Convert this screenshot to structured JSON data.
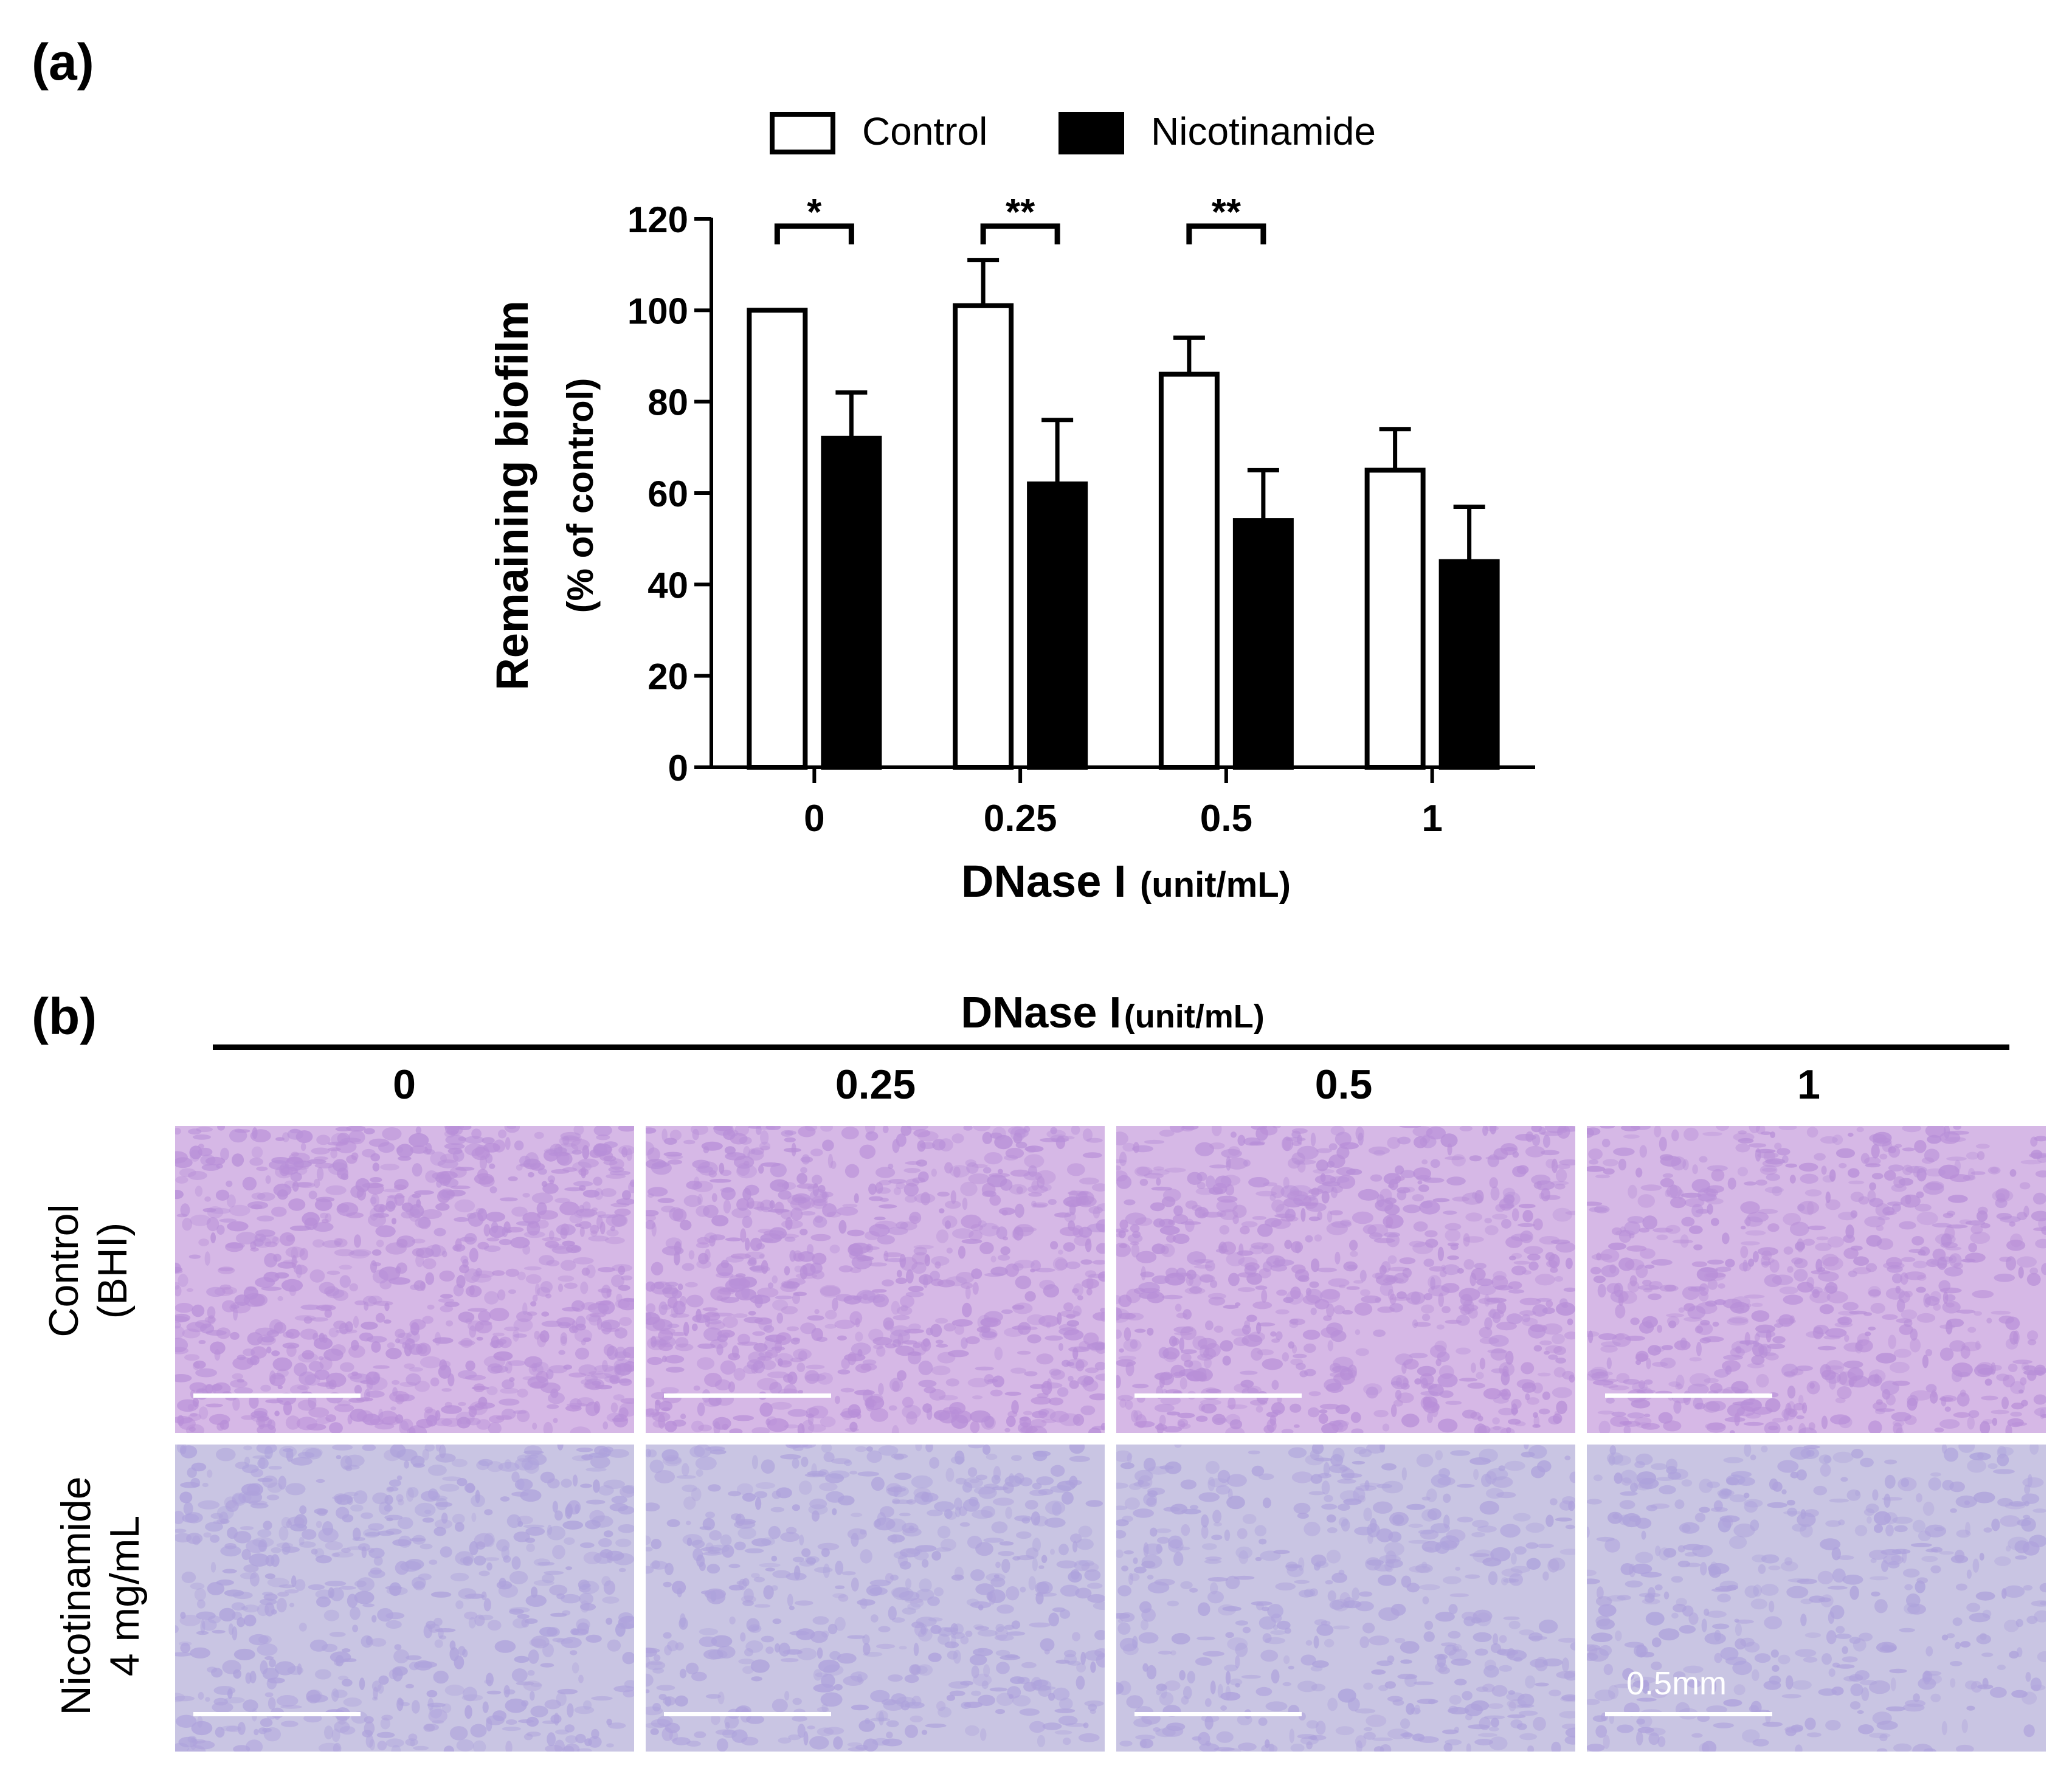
{
  "panel_a": {
    "label": "(a)"
  },
  "panel_b": {
    "label": "(b)",
    "header_title": "DNase I",
    "header_unit": "(unit/mL)",
    "columns": [
      "0",
      "0.25",
      "0.5",
      "1"
    ],
    "rows": [
      {
        "line1": "Control",
        "line2": "(BHI)"
      },
      {
        "line1": "Nicotinamide",
        "line2": "4 mg/mL"
      }
    ],
    "scale_bar_label": "0.5mm",
    "colors": {
      "control_tint": "#b88fd8",
      "control_tint_light": "#d6b8e6",
      "nicotinamide_tint": "#aea2dc",
      "nicotinamide_tint_light": "#c9c5e3"
    }
  },
  "chart_data": {
    "type": "bar",
    "categories": [
      "0",
      "0.25",
      "0.5",
      "1"
    ],
    "xlabel_main": "DNase I",
    "xlabel_unit": "(unit/mL)",
    "ylabel_main": "Remaining biofilm",
    "ylabel_sub": "(% of control)",
    "ylim": [
      0,
      120
    ],
    "yticks": [
      0,
      20,
      40,
      60,
      80,
      100,
      120
    ],
    "legend_position": "top",
    "series": [
      {
        "name": "Control",
        "color": "#ffffff",
        "values": [
          100,
          101,
          86,
          65
        ],
        "errors": [
          0,
          10,
          8,
          9
        ]
      },
      {
        "name": "Nicotinamide",
        "color": "#000000",
        "values": [
          72,
          62,
          54,
          45
        ],
        "errors": [
          10,
          14,
          11,
          12
        ]
      }
    ],
    "significance": [
      {
        "category": "0",
        "label": "*"
      },
      {
        "category": "0.25",
        "label": "**"
      },
      {
        "category": "0.5",
        "label": "**"
      }
    ]
  }
}
